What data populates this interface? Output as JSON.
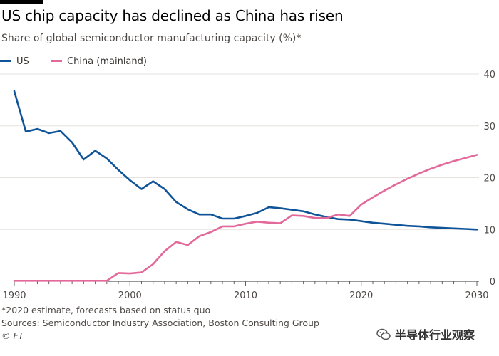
{
  "title": "US chip capacity has declined as China has risen",
  "subtitle": "Share of global semiconductor manufacturing capacity (%)*",
  "footnote": "*2020 estimate, forecasts based on status quo",
  "sources": "Sources: Semiconductor Industry Association, Boston Consulting Group",
  "credit": "© FT",
  "watermark_text": "半导体行业观察",
  "colors": {
    "us": "#0f5499",
    "china": "#e3699a",
    "grid": "#e6e2dd",
    "axis": "#4d4845"
  },
  "chart_data": {
    "type": "line",
    "x_ticks": [
      1990,
      2000,
      2010,
      2020,
      2030
    ],
    "y_ticks": [
      0,
      10,
      20,
      30,
      40
    ],
    "xlim": [
      1990,
      2030
    ],
    "ylim": [
      0,
      40
    ],
    "x_minor_tick_step": 1,
    "grid": true,
    "legend_position": "top-left",
    "series": [
      {
        "name": "US",
        "color": "#0f5499",
        "points": [
          [
            1990,
            36.7
          ],
          [
            1991,
            28.9
          ],
          [
            1992,
            29.4
          ],
          [
            1993,
            28.6
          ],
          [
            1994,
            29.0
          ],
          [
            1995,
            26.8
          ],
          [
            1996,
            23.5
          ],
          [
            1997,
            25.2
          ],
          [
            1998,
            23.7
          ],
          [
            1999,
            21.5
          ],
          [
            2000,
            19.5
          ],
          [
            2001,
            17.8
          ],
          [
            2002,
            19.3
          ],
          [
            2003,
            17.8
          ],
          [
            2004,
            15.3
          ],
          [
            2005,
            13.9
          ],
          [
            2006,
            12.9
          ],
          [
            2007,
            12.9
          ],
          [
            2008,
            12.1
          ],
          [
            2009,
            12.1
          ],
          [
            2010,
            12.6
          ],
          [
            2011,
            13.2
          ],
          [
            2012,
            14.3
          ],
          [
            2013,
            14.1
          ],
          [
            2014,
            13.8
          ],
          [
            2015,
            13.5
          ],
          [
            2016,
            12.9
          ],
          [
            2017,
            12.4
          ],
          [
            2018,
            12.0
          ],
          [
            2019,
            11.9
          ],
          [
            2020,
            11.6
          ],
          [
            2021,
            11.3
          ],
          [
            2022,
            11.1
          ],
          [
            2023,
            10.9
          ],
          [
            2024,
            10.7
          ],
          [
            2025,
            10.6
          ],
          [
            2026,
            10.4
          ],
          [
            2027,
            10.3
          ],
          [
            2028,
            10.2
          ],
          [
            2029,
            10.1
          ],
          [
            2030,
            10.0
          ]
        ]
      },
      {
        "name": "China (mainland)",
        "color": "#e3699a",
        "points": [
          [
            1990,
            0.1
          ],
          [
            1991,
            0.1
          ],
          [
            1992,
            0.1
          ],
          [
            1993,
            0.1
          ],
          [
            1994,
            0.1
          ],
          [
            1995,
            0.1
          ],
          [
            1996,
            0.1
          ],
          [
            1997,
            0.1
          ],
          [
            1998,
            0.1
          ],
          [
            1999,
            1.6
          ],
          [
            2000,
            1.5
          ],
          [
            2001,
            1.7
          ],
          [
            2002,
            3.3
          ],
          [
            2003,
            5.8
          ],
          [
            2004,
            7.6
          ],
          [
            2005,
            7.0
          ],
          [
            2006,
            8.7
          ],
          [
            2007,
            9.5
          ],
          [
            2008,
            10.6
          ],
          [
            2009,
            10.6
          ],
          [
            2010,
            11.1
          ],
          [
            2011,
            11.5
          ],
          [
            2012,
            11.3
          ],
          [
            2013,
            11.2
          ],
          [
            2014,
            12.7
          ],
          [
            2015,
            12.6
          ],
          [
            2016,
            12.2
          ],
          [
            2017,
            12.2
          ],
          [
            2018,
            12.9
          ],
          [
            2019,
            12.6
          ],
          [
            2020,
            14.8
          ],
          [
            2021,
            16.2
          ],
          [
            2022,
            17.5
          ],
          [
            2023,
            18.7
          ],
          [
            2024,
            19.8
          ],
          [
            2025,
            20.8
          ],
          [
            2026,
            21.7
          ],
          [
            2027,
            22.5
          ],
          [
            2028,
            23.2
          ],
          [
            2029,
            23.8
          ],
          [
            2030,
            24.4
          ]
        ]
      }
    ]
  }
}
